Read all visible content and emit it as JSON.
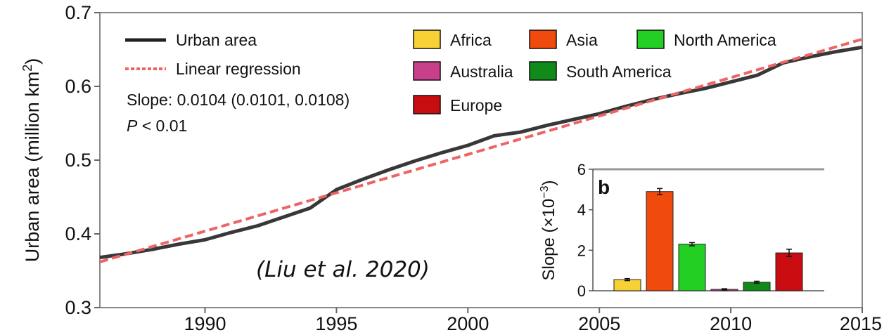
{
  "chart_data": [
    {
      "type": "line",
      "ylabel": "Urban area (million km",
      "ylabel_sup": "2",
      "ylabel_close": ")",
      "xlim": [
        1986,
        2015
      ],
      "ylim": [
        0.3,
        0.7
      ],
      "x_ticks": [
        "1990",
        "1995",
        "2000",
        "2005",
        "2010",
        "2015"
      ],
      "y_ticks": [
        "0.3",
        "0.4",
        "0.5",
        "0.6",
        "0.7"
      ],
      "grid": false,
      "series": [
        {
          "name": "Urban area",
          "color": "#383838",
          "style": "solid",
          "x": [
            1986,
            1987,
            1988,
            1989,
            1990,
            1991,
            1992,
            1993,
            1994,
            1995,
            1996,
            1997,
            1998,
            1999,
            2000,
            2001,
            2002,
            2003,
            2004,
            2005,
            2006,
            2007,
            2008,
            2009,
            2010,
            2011,
            2012,
            2013,
            2014,
            2015
          ],
          "y": [
            0.368,
            0.373,
            0.379,
            0.386,
            0.392,
            0.402,
            0.411,
            0.423,
            0.435,
            0.46,
            0.474,
            0.487,
            0.499,
            0.51,
            0.52,
            0.533,
            0.538,
            0.547,
            0.555,
            0.563,
            0.573,
            0.582,
            0.59,
            0.597,
            0.606,
            0.615,
            0.632,
            0.64,
            0.647,
            0.653
          ]
        },
        {
          "name": "Linear regression",
          "color": "#ee6464",
          "style": "dashed",
          "x": [
            1986,
            2015
          ],
          "y": [
            0.362,
            0.664
          ]
        }
      ],
      "annotations": {
        "slope": "Slope: 0.0104 (0.0101, 0.0108)",
        "p_symbol": "P",
        "p_value": " < 0.01"
      },
      "legend_position": "top-left",
      "continents": [
        {
          "name": "Africa",
          "color": "#f8d234"
        },
        {
          "name": "Asia",
          "color": "#f04a0c"
        },
        {
          "name": "North America",
          "color": "#22cf22"
        },
        {
          "name": "Australia",
          "color": "#c8408a"
        },
        {
          "name": "South America",
          "color": "#108a18"
        },
        {
          "name": "Europe",
          "color": "#c80c10"
        }
      ]
    },
    {
      "type": "bar",
      "panel_label": "b",
      "ylabel": "Slope (×10",
      "ylabel_sup": "−3",
      "ylabel_close": ")",
      "ylim": [
        0,
        6
      ],
      "y_ticks": [
        "0",
        "2",
        "4",
        "6"
      ],
      "categories": [
        "Africa",
        "Asia",
        "North America",
        "Australia",
        "South America",
        "Europe"
      ],
      "values": [
        0.55,
        4.9,
        2.3,
        0.07,
        0.42,
        1.87
      ],
      "errors": [
        0.05,
        0.15,
        0.08,
        0.03,
        0.05,
        0.18
      ],
      "colors": [
        "#f8d234",
        "#f04a0c",
        "#22cf22",
        "#c8408a",
        "#108a18",
        "#c80c10"
      ]
    }
  ],
  "citation": "(Liu et al. 2020)"
}
